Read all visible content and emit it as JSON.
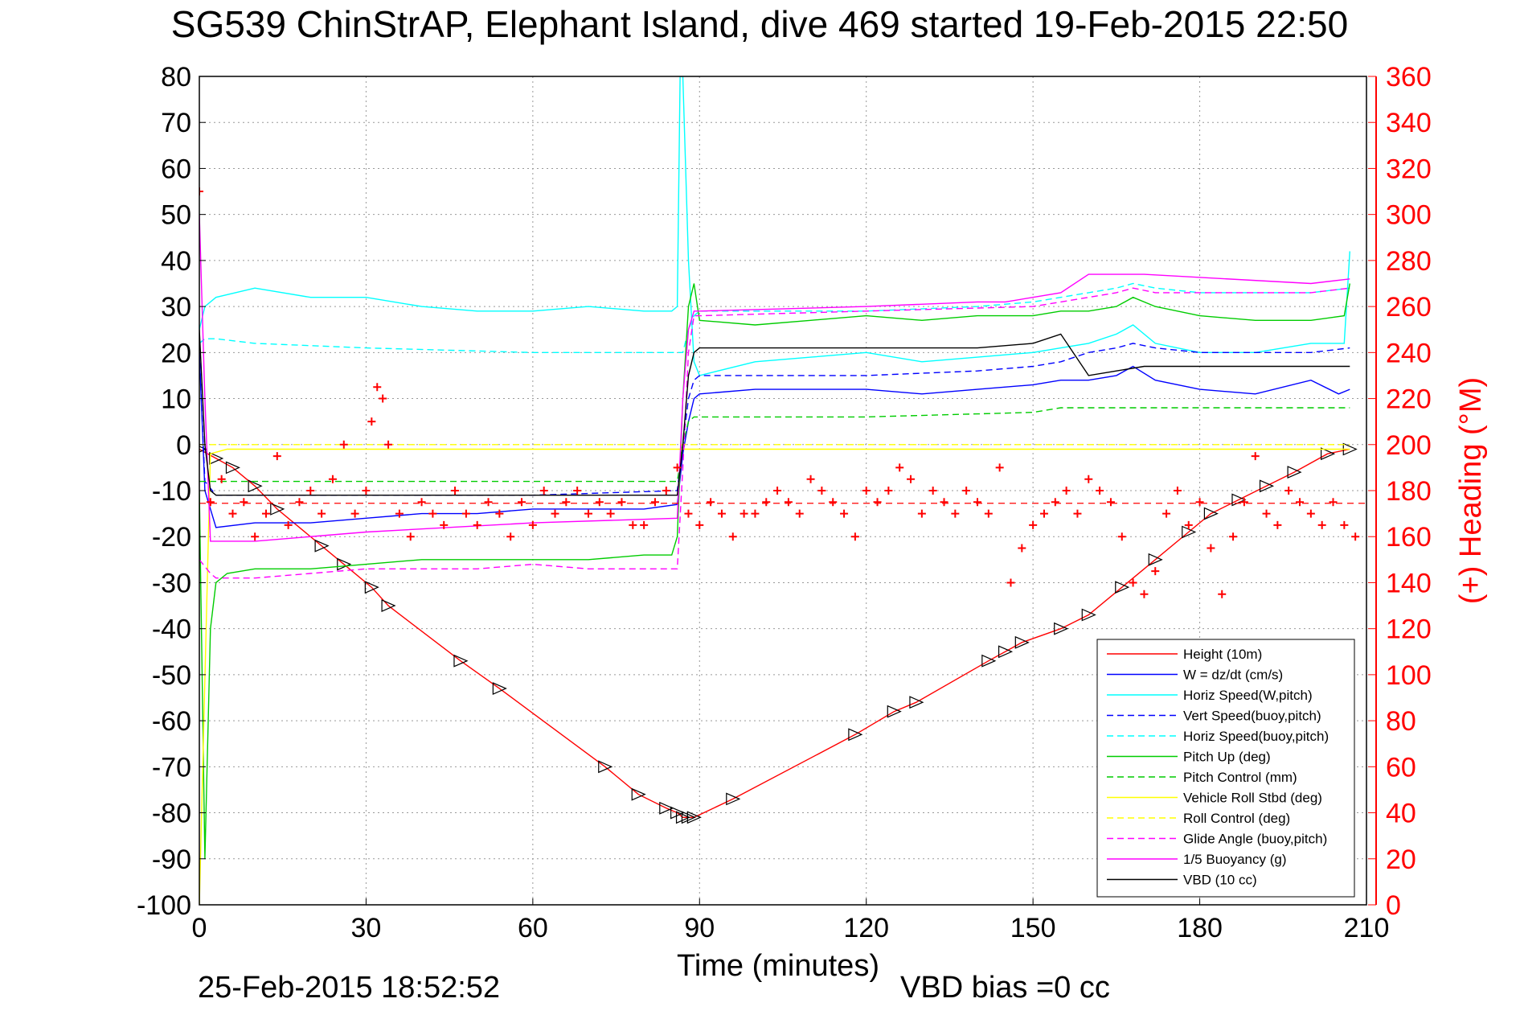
{
  "chart_data": {
    "type": "line",
    "title": "SG539 ChinStrAP, Elephant Island, dive 469 started 19-Feb-2015 22:50",
    "xlabel": "Time (minutes)",
    "ylabel": "",
    "ylabel_right": "(+) Heading (°M)",
    "xlim": [
      0,
      210
    ],
    "ylim": [
      -100,
      80
    ],
    "ylim_right": [
      0,
      360
    ],
    "x_ticks": [
      0,
      30,
      60,
      90,
      120,
      150,
      180,
      210
    ],
    "y_ticks": [
      80,
      70,
      60,
      50,
      40,
      30,
      20,
      10,
      0,
      -10,
      -20,
      -30,
      -40,
      -50,
      -60,
      -70,
      -80,
      -90,
      -100
    ],
    "y_ticks_right": [
      360,
      340,
      320,
      300,
      280,
      260,
      240,
      220,
      200,
      180,
      160,
      140,
      120,
      100,
      80,
      60,
      40,
      20,
      0
    ],
    "grid": true,
    "legend_position": "bottom-right",
    "footer_left": "25-Feb-2015 18:52:52",
    "footer_right": "VBD bias =0 cc",
    "colors": {
      "red": "#ff0000",
      "blue": "#0000ff",
      "cyan": "#00ffff",
      "green": "#00cc00",
      "yellow": "#ffff00",
      "magenta": "#ff00ff",
      "black": "#000000",
      "grid": "#999999"
    },
    "series": [
      {
        "name": "Height (10m)",
        "color": "#ff0000",
        "dash": "solid",
        "axis": "left",
        "marker": "triangle",
        "x": [
          0,
          3,
          6,
          10,
          14,
          22,
          26,
          31,
          34,
          47,
          54,
          73,
          79,
          84,
          86,
          87,
          88,
          89,
          96,
          118,
          125,
          129,
          142,
          145,
          148,
          155,
          160,
          166,
          172,
          178,
          182,
          187,
          192,
          197,
          203,
          207
        ],
        "y": [
          -1,
          -3,
          -5,
          -9,
          -14,
          -22,
          -26,
          -31,
          -35,
          -47,
          -53,
          -70,
          -76,
          -79,
          -80,
          -81,
          -81,
          -81,
          -77,
          -63,
          -58,
          -56,
          -47,
          -45,
          -43,
          -40,
          -37,
          -31,
          -25,
          -19,
          -15,
          -12,
          -9,
          -6,
          -2,
          -1
        ]
      },
      {
        "name": "W = dz/dt (cm/s)",
        "color": "#0000ff",
        "dash": "solid",
        "axis": "left",
        "x": [
          0,
          1,
          3,
          10,
          20,
          30,
          40,
          50,
          60,
          70,
          80,
          86,
          87,
          88,
          89,
          90,
          100,
          110,
          120,
          130,
          140,
          150,
          155,
          160,
          165,
          168,
          172,
          180,
          190,
          200,
          205,
          207
        ],
        "y": [
          20,
          -10,
          -18,
          -17,
          -17,
          -16,
          -15,
          -15,
          -14,
          -14,
          -14,
          -13,
          -2,
          5,
          10,
          11,
          12,
          12,
          12,
          11,
          12,
          13,
          14,
          14,
          15,
          17,
          14,
          12,
          11,
          14,
          11,
          12
        ]
      },
      {
        "name": "Horiz Speed(W,pitch)",
        "color": "#00ffff",
        "dash": "solid",
        "axis": "left",
        "x": [
          0,
          1,
          3,
          10,
          20,
          30,
          40,
          50,
          60,
          70,
          80,
          85,
          86,
          86.5,
          87,
          88,
          89,
          90,
          100,
          110,
          120,
          130,
          140,
          150,
          155,
          160,
          165,
          168,
          172,
          180,
          190,
          200,
          206,
          207
        ],
        "y": [
          25,
          30,
          32,
          34,
          32,
          32,
          30,
          29,
          29,
          30,
          29,
          29,
          30,
          80,
          80,
          40,
          18,
          15,
          18,
          19,
          20,
          18,
          19,
          20,
          21,
          22,
          24,
          26,
          22,
          20,
          20,
          22,
          22,
          42
        ]
      },
      {
        "name": "Vert Speed(buoy,pitch)",
        "color": "#0000ff",
        "dash": "dash",
        "axis": "left",
        "x": [
          0,
          1,
          3,
          10,
          30,
          60,
          86,
          87,
          88,
          89,
          90,
          100,
          120,
          140,
          150,
          155,
          160,
          165,
          168,
          172,
          180,
          200,
          207
        ],
        "y": [
          20,
          -8,
          -11,
          -11,
          -11,
          -11,
          -10,
          0,
          10,
          14,
          15,
          15,
          15,
          16,
          17,
          18,
          20,
          21,
          22,
          21,
          20,
          20,
          21
        ]
      },
      {
        "name": "Horiz Speed(buoy,pitch)",
        "color": "#00ffff",
        "dash": "dash",
        "axis": "left",
        "x": [
          0,
          1,
          3,
          10,
          30,
          60,
          86,
          87,
          88,
          89,
          90,
          100,
          120,
          140,
          150,
          155,
          160,
          165,
          168,
          172,
          180,
          200,
          207
        ],
        "y": [
          22,
          23,
          23,
          22,
          21,
          20,
          20,
          20,
          25,
          28,
          29,
          29,
          29,
          30,
          31,
          32,
          33,
          34,
          35,
          34,
          33,
          33,
          34
        ]
      },
      {
        "name": "Pitch Up (deg)",
        "color": "#00cc00",
        "dash": "solid",
        "axis": "left",
        "x": [
          0,
          1,
          2,
          3,
          5,
          10,
          20,
          30,
          40,
          50,
          60,
          70,
          80,
          85,
          86,
          87,
          88,
          89,
          90,
          100,
          110,
          120,
          130,
          140,
          150,
          155,
          160,
          165,
          168,
          172,
          180,
          190,
          200,
          206,
          207
        ],
        "y": [
          -10,
          -90,
          -40,
          -30,
          -28,
          -27,
          -27,
          -26,
          -25,
          -25,
          -25,
          -25,
          -24,
          -24,
          -20,
          10,
          30,
          35,
          27,
          26,
          27,
          28,
          27,
          28,
          28,
          29,
          29,
          30,
          32,
          30,
          28,
          27,
          27,
          28,
          35
        ]
      },
      {
        "name": "Pitch Control (mm)",
        "color": "#00cc00",
        "dash": "dash",
        "axis": "left",
        "x": [
          0,
          2,
          3,
          20,
          40,
          60,
          86,
          87,
          88,
          89,
          90,
          120,
          150,
          155,
          207
        ],
        "y": [
          -8,
          -8,
          -8,
          -8,
          -8,
          -8,
          -8,
          0,
          5,
          6,
          6,
          6,
          7,
          8,
          8
        ]
      },
      {
        "name": "Vehicle Roll Stbd (deg)",
        "color": "#ffff00",
        "dash": "solid",
        "axis": "left",
        "x": [
          0,
          2,
          5,
          10,
          20,
          30,
          40,
          50,
          60,
          70,
          80,
          86,
          90,
          100,
          110,
          120,
          130,
          140,
          150,
          160,
          170,
          180,
          190,
          200,
          207
        ],
        "y": [
          -100,
          -2,
          -1,
          -1,
          -1,
          -1,
          -1,
          -1,
          -1,
          -1,
          -1,
          -1,
          -1,
          -1,
          -1,
          -1,
          -1,
          -1,
          -1,
          -1,
          -1,
          -1,
          -1,
          -1,
          -1
        ]
      },
      {
        "name": "Roll Control (deg)",
        "color": "#ffff00",
        "dash": "dash",
        "axis": "left",
        "x": [
          0,
          2,
          5,
          10,
          20,
          30,
          40,
          50,
          60,
          70,
          80,
          86,
          90,
          100,
          110,
          120,
          130,
          140,
          150,
          160,
          170,
          180,
          190,
          200,
          207
        ],
        "y": [
          0,
          0,
          0,
          0,
          0,
          0,
          0,
          0,
          0,
          0,
          0,
          0,
          0,
          0,
          0,
          0,
          0,
          0,
          0,
          0,
          0,
          0,
          0,
          0,
          0
        ]
      },
      {
        "name": "Glide Angle (buoy,pitch)",
        "color": "#ff00ff",
        "dash": "dash",
        "axis": "left",
        "x": [
          0,
          2,
          3,
          10,
          20,
          30,
          40,
          50,
          60,
          70,
          80,
          86,
          87,
          88,
          89,
          90,
          120,
          150,
          155,
          160,
          165,
          168,
          172,
          200,
          207
        ],
        "y": [
          -25,
          -28,
          -29,
          -29,
          -28,
          -27,
          -27,
          -27,
          -26,
          -27,
          -27,
          -27,
          -5,
          20,
          28,
          28,
          29,
          30,
          31,
          32,
          33,
          34,
          33,
          33,
          34
        ]
      },
      {
        "name": "1/5 Buoyancy (g)",
        "color": "#ff00ff",
        "dash": "solid",
        "axis": "left",
        "x": [
          0,
          1,
          2,
          10,
          30,
          60,
          86,
          87,
          88,
          89,
          90,
          120,
          140,
          145,
          150,
          155,
          160,
          165,
          170,
          200,
          207
        ],
        "y": [
          50,
          10,
          -21,
          -21,
          -19,
          -17,
          -16,
          10,
          25,
          29,
          29,
          30,
          31,
          31,
          32,
          33,
          37,
          37,
          37,
          35,
          36
        ]
      },
      {
        "name": "VBD (10 cc)",
        "color": "#000000",
        "dash": "solid",
        "axis": "left",
        "x": [
          0,
          1,
          2,
          3,
          30,
          60,
          86,
          87,
          88,
          89,
          90,
          120,
          140,
          150,
          155,
          160,
          165,
          170,
          200,
          207
        ],
        "y": [
          25,
          0,
          -10,
          -11,
          -11,
          -11,
          -11,
          0,
          15,
          20,
          21,
          21,
          21,
          22,
          24,
          15,
          16,
          17,
          17,
          17
        ]
      },
      {
        "name": "Heading (deg)",
        "color": "#ff0000",
        "dash": "plus",
        "axis": "right",
        "x": [
          0,
          2,
          4,
          6,
          8,
          10,
          12,
          14,
          16,
          18,
          20,
          22,
          24,
          26,
          28,
          30,
          31,
          32,
          33,
          34,
          36,
          38,
          40,
          42,
          44,
          46,
          48,
          50,
          52,
          54,
          56,
          58,
          60,
          62,
          64,
          66,
          68,
          70,
          72,
          74,
          76,
          78,
          80,
          82,
          84,
          86,
          88,
          90,
          92,
          94,
          96,
          98,
          100,
          102,
          104,
          106,
          108,
          110,
          112,
          114,
          116,
          118,
          120,
          122,
          124,
          126,
          128,
          130,
          132,
          134,
          136,
          138,
          140,
          142,
          144,
          146,
          148,
          150,
          152,
          154,
          156,
          158,
          160,
          162,
          164,
          166,
          168,
          170,
          172,
          174,
          176,
          178,
          180,
          182,
          184,
          186,
          188,
          190,
          192,
          194,
          196,
          198,
          200,
          202,
          204,
          206,
          208
        ],
        "y": [
          310,
          175,
          185,
          170,
          175,
          160,
          170,
          195,
          165,
          175,
          180,
          170,
          185,
          200,
          170,
          180,
          210,
          225,
          220,
          200,
          170,
          160,
          175,
          170,
          165,
          180,
          170,
          165,
          175,
          170,
          160,
          175,
          165,
          180,
          170,
          175,
          180,
          170,
          175,
          170,
          175,
          165,
          165,
          175,
          180,
          190,
          170,
          165,
          175,
          170,
          160,
          170,
          170,
          175,
          180,
          175,
          170,
          185,
          180,
          175,
          170,
          160,
          180,
          175,
          180,
          190,
          185,
          170,
          180,
          175,
          170,
          180,
          175,
          170,
          190,
          140,
          155,
          165,
          170,
          175,
          180,
          170,
          185,
          180,
          175,
          160,
          140,
          135,
          145,
          170,
          180,
          165,
          175,
          155,
          135,
          160,
          175,
          195,
          170,
          165,
          180,
          175,
          170,
          165,
          175,
          165,
          160
        ]
      }
    ]
  }
}
